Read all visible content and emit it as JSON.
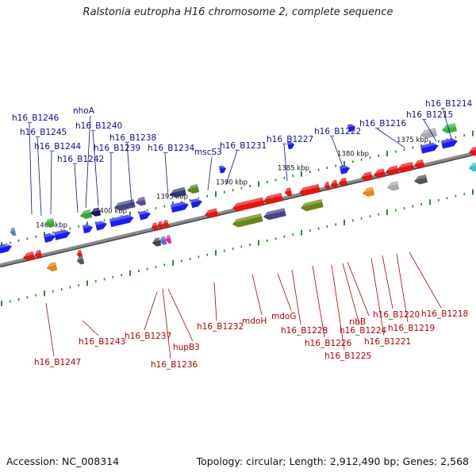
{
  "title": "Ralstonia eutropha H16 chromosome 2, complete sequence",
  "footer": {
    "accession": "Accession: NC_008314",
    "topology": "Topology: circular; Length: 2,912,490 bp; Genes: 2,568"
  },
  "colors": {
    "forward_gene": "#1a1aff",
    "reverse_gene": "#ee1111",
    "backbone": "#8a8a8a",
    "ticks": "#2a8a2a",
    "top_label": "#0c0c9a",
    "bottom_label": "#b30000"
  },
  "scale_labels": [
    "1405 kbp",
    "1400 kbp",
    "1395 kbp",
    "1390 kbp",
    "1385 kbp",
    "1380 kbp",
    "1375 kbp"
  ],
  "top_labels": [
    "h16_B1246",
    "h16_B1245",
    "h16_B1244",
    "h16_B1242",
    "nhoA",
    "h16_B1240",
    "h16_B1239",
    "h16_B1238",
    "h16_B1234",
    "mscS3",
    "h16_B1231",
    "h16_B1227",
    "h16_B1222",
    "h16_B1216",
    "h16_B1215",
    "h16_B1214"
  ],
  "bottom_labels": [
    "h16_B1247",
    "h16_B1243",
    "h16_B1237",
    "h16_B1236",
    "hupB3",
    "h16_B1232",
    "mdoH",
    "mdoG",
    "h16_B1228",
    "h16_B1226",
    "h16_B1225",
    "h16_B1224",
    "ribB",
    "h16_B1221",
    "h16_B1220",
    "h16_B1219",
    "h16_B1218"
  ]
}
